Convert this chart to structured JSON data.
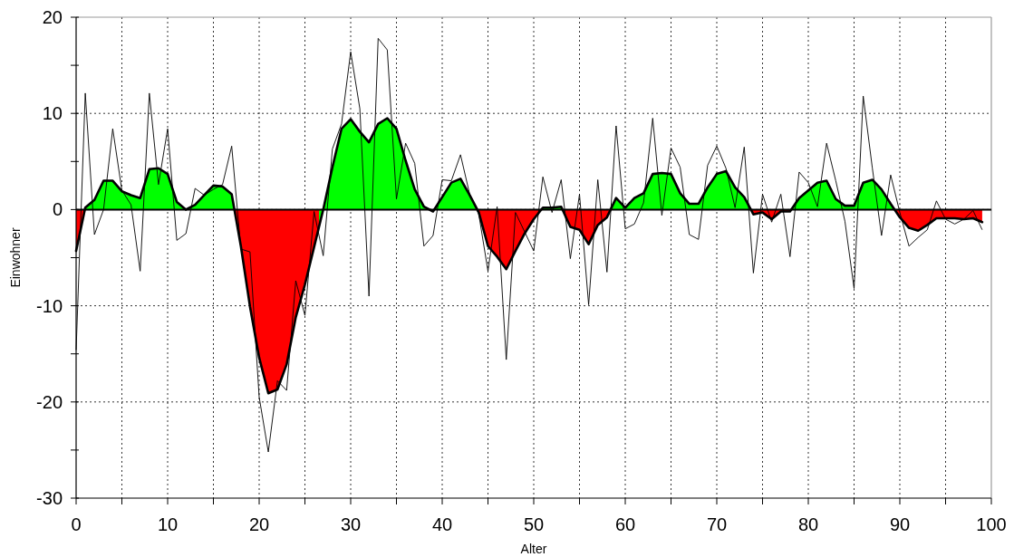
{
  "chart_data": {
    "type": "area",
    "xlabel": "Alter",
    "ylabel": "Einwohner",
    "x": [
      0,
      1,
      2,
      3,
      4,
      5,
      6,
      7,
      8,
      9,
      10,
      11,
      12,
      13,
      14,
      15,
      16,
      17,
      18,
      19,
      20,
      21,
      22,
      23,
      24,
      25,
      26,
      27,
      28,
      29,
      30,
      31,
      32,
      33,
      34,
      35,
      36,
      37,
      38,
      39,
      40,
      41,
      42,
      43,
      44,
      45,
      46,
      47,
      48,
      49,
      50,
      51,
      52,
      53,
      54,
      55,
      56,
      57,
      58,
      59,
      60,
      61,
      62,
      63,
      64,
      65,
      66,
      67,
      68,
      69,
      70,
      71,
      72,
      73,
      74,
      75,
      76,
      77,
      78,
      79,
      80,
      81,
      82,
      83,
      84,
      85,
      86,
      87,
      88,
      89,
      90,
      91,
      92,
      93,
      94,
      95,
      96,
      97,
      98,
      99
    ],
    "series": [
      {
        "color": "#000000",
        "values": [
          -4.3,
          0.2,
          1.0,
          3.0,
          3.0,
          1.9,
          1.5,
          1.2,
          4.2,
          4.3,
          3.7,
          0.8,
          0.0,
          0.5,
          1.5,
          2.5,
          2.4,
          1.6,
          -3.8,
          -10.1,
          -15.4,
          -19.1,
          -18.7,
          -16.1,
          -11.2,
          -7.8,
          -3.9,
          0.0,
          4.4,
          8.4,
          9.4,
          8.1,
          7.0,
          8.9,
          9.5,
          8.4,
          5.1,
          2.1,
          0.3,
          -0.2,
          1.3,
          2.8,
          3.2,
          1.5,
          -0.3,
          -3.8,
          -4.9,
          -6.2,
          -4.3,
          -2.5,
          -1.0,
          0.2,
          0.2,
          0.3,
          -1.8,
          -2.1,
          -3.6,
          -1.6,
          -0.8,
          1.2,
          0.2,
          1.2,
          1.7,
          3.7,
          3.8,
          3.7,
          1.7,
          0.6,
          0.6,
          2.3,
          3.7,
          4.0,
          2.3,
          1.3,
          -0.5,
          -0.3,
          -1.0,
          -0.2,
          -0.2,
          1.2,
          2.0,
          2.8,
          3.0,
          1.1,
          0.4,
          0.4,
          2.8,
          3.1,
          2.1,
          0.6,
          -0.8,
          -1.9,
          -2.2,
          -1.6,
          -0.9,
          -0.9,
          -0.9,
          -1.0,
          -0.9,
          -1.3
        ],
        "colors": [
          "#ff0000",
          "#00ff00",
          "#00ff00",
          "#00ff00",
          "#00ff00",
          "#00ff00",
          "#00ff00",
          "#00ff00",
          "#00ff00",
          "#00ff00",
          "#00ff00",
          "#00ff00",
          "#00ff00",
          "#00ff00",
          "#00ff00",
          "#00ff00",
          "#00ff00",
          "#00ff00",
          "#ff0000",
          "#ff0000",
          "#ff0000",
          "#ff0000",
          "#ff0000",
          "#ff0000",
          "#ff0000",
          "#ff0000",
          "#ff0000",
          "#00ff00",
          "#00ff00",
          "#00ff00",
          "#00ff00",
          "#00ff00",
          "#00ff00",
          "#00ff00",
          "#00ff00",
          "#00ff00",
          "#00ff00",
          "#00ff00",
          "#00ff00",
          "#ff0000",
          "#00ff00",
          "#00ff00",
          "#00ff00",
          "#00ff00",
          "#ff0000",
          "#ff0000",
          "#ff0000",
          "#ff0000",
          "#ff0000",
          "#ff0000",
          "#ff0000",
          "#00ff00",
          "#00ff00",
          "#00ff00",
          "#ff0000",
          "#ff0000",
          "#ff0000",
          "#ff0000",
          "#ff0000",
          "#00ff00",
          "#00ff00",
          "#00ff00",
          "#00ff00",
          "#00ff00",
          "#00ff00",
          "#00ff00",
          "#00ff00",
          "#00ff00",
          "#00ff00",
          "#00ff00",
          "#00ff00",
          "#00ff00",
          "#00ff00",
          "#00ff00",
          "#ff0000",
          "#ff0000",
          "#ff0000",
          "#ff0000",
          "#ff0000",
          "#00ff00",
          "#00ff00",
          "#00ff00",
          "#00ff00",
          "#00ff00",
          "#00ff00",
          "#00ff00",
          "#00ff00",
          "#00ff00",
          "#00ff00",
          "#00ff00",
          "#ff0000",
          "#ff0000",
          "#ff0000",
          "#ff0000",
          "#ff0000",
          "#ff0000",
          "#ff0000",
          "#ff0000",
          "#ff0000",
          "#ff0000"
        ]
      },
      {
        "type": "line",
        "color": "#000000",
        "values": [
          -14.6,
          12.1,
          -2.6,
          0.0,
          8.4,
          2.0,
          0.5,
          -6.4,
          12.1,
          2.6,
          8.4,
          -3.2,
          -2.5,
          2.2,
          1.5,
          2.1,
          2.6,
          6.6,
          -4.1,
          -4.4,
          -19.5,
          -25.2,
          -17.8,
          -18.8,
          -7.4,
          -11.0,
          -0.2,
          -4.8,
          6.3,
          8.9,
          16.4,
          10.5,
          -9.0,
          17.8,
          16.6,
          1.1,
          6.9,
          4.8,
          -3.8,
          -2.7,
          3.1,
          3.0,
          5.7,
          1.6,
          -0.5,
          -6.4,
          0.3,
          -15.6,
          -0.3,
          -2.3,
          -4.3,
          3.4,
          -0.3,
          3.1,
          -5.1,
          1.6,
          -9.9,
          3.1,
          -6.5,
          8.7,
          -2.0,
          -1.5,
          0.7,
          9.5,
          -0.6,
          6.4,
          4.4,
          -2.6,
          -3.1,
          4.6,
          6.6,
          4.3,
          0.2,
          6.5,
          -6.6,
          1.6,
          -1.3,
          1.6,
          -4.9,
          3.9,
          2.8,
          0.3,
          6.9,
          3.0,
          -1.2,
          -8.2,
          11.8,
          4.3,
          -2.7,
          3.6,
          -0.3,
          -3.8,
          -2.9,
          -2.1,
          0.9,
          -1.0,
          -1.5,
          -1.0,
          -0.1,
          -2.1
        ]
      }
    ],
    "xlim": [
      0,
      100
    ],
    "ylim": [
      -30,
      20
    ],
    "xticks": [
      0,
      {
        "value": 5,
        "label": null
      },
      10,
      {
        "value": 15,
        "label": null
      },
      20,
      {
        "value": 25,
        "label": null
      },
      30,
      {
        "value": 35,
        "label": null
      },
      40,
      {
        "value": 45,
        "label": null
      },
      50,
      {
        "value": 55,
        "label": null
      },
      60,
      {
        "value": 65,
        "label": null
      },
      70,
      {
        "value": 75,
        "label": null
      },
      80,
      {
        "value": 85,
        "label": null
      },
      90,
      {
        "value": 95,
        "label": null
      },
      100
    ],
    "yticks": [
      -30,
      {
        "value": -25,
        "label": null
      },
      -20,
      {
        "value": -15,
        "label": null
      },
      -10,
      {
        "value": -5,
        "label": null
      },
      0,
      {
        "value": 5,
        "label": null
      },
      10,
      {
        "value": 15,
        "label": null
      },
      20
    ],
    "ref_lines": [
      {
        "axis": "y",
        "value": 0,
        "color": "#000000"
      }
    ],
    "grid": true
  }
}
